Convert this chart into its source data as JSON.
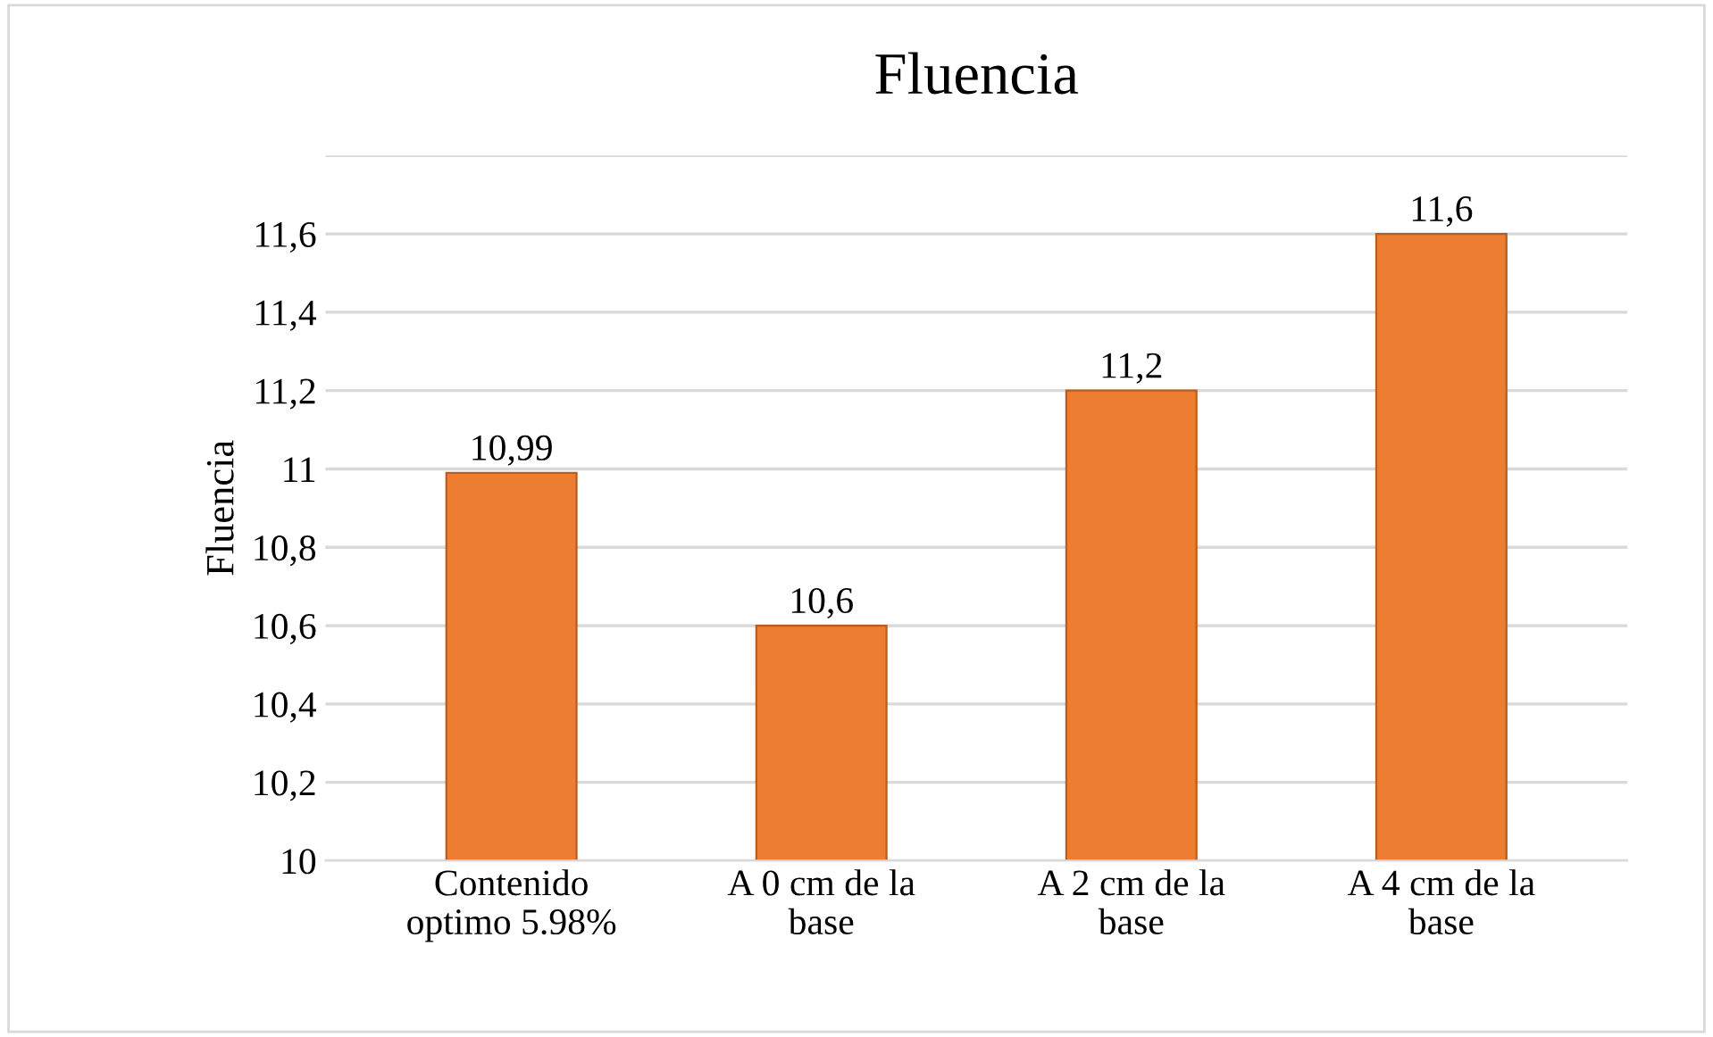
{
  "chart_data": {
    "type": "bar",
    "title": "Fluencia",
    "ylabel": "Fluencia",
    "categories": [
      "Contenido\noptimo 5.98%",
      "A 0 cm de la\nbase",
      "A 2 cm de la\nbase",
      "A 4 cm de la\nbase"
    ],
    "values": [
      10.99,
      10.6,
      11.2,
      11.6
    ],
    "value_labels": [
      "10,99",
      "10,6",
      "11,2",
      "11,6"
    ],
    "color": "#ed7d31",
    "ylim": [
      10,
      11.8
    ],
    "yticks": [
      10,
      {
        "value": 10.2,
        "label": "10,2"
      },
      {
        "value": 10.4,
        "label": "10,4"
      },
      {
        "value": 10.6,
        "label": "10,6"
      },
      {
        "value": 10.8,
        "label": "10,8"
      },
      11,
      {
        "value": 11.2,
        "label": "11,2"
      },
      {
        "value": 11.4,
        "label": "11,4"
      },
      {
        "value": 11.6,
        "label": "11,6"
      },
      {
        "value": 11.8,
        "label": null
      }
    ],
    "grid": "y"
  }
}
